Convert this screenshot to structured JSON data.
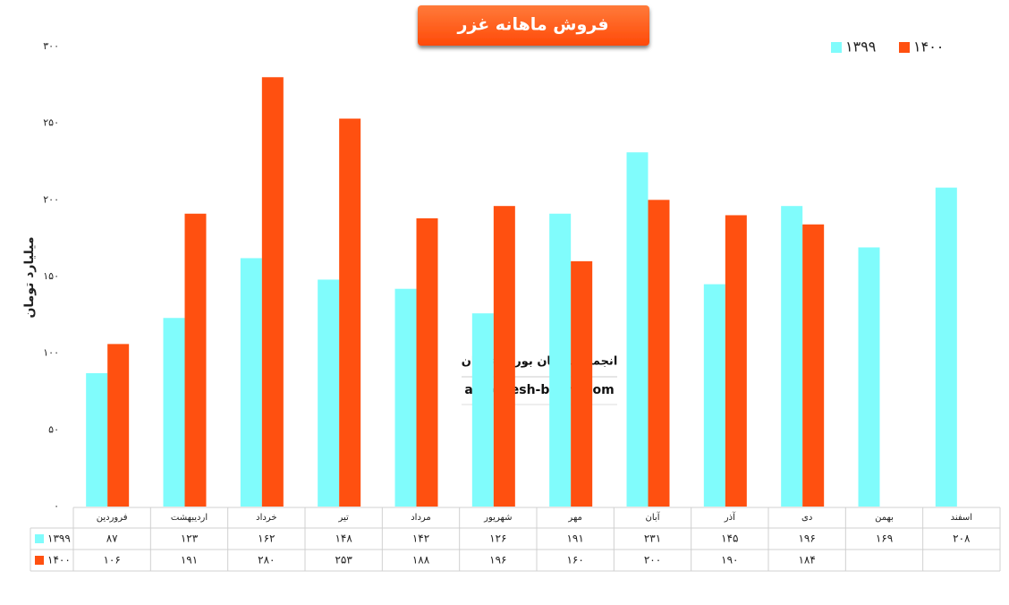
{
  "chart_data": {
    "type": "bar",
    "title": "فروش ماهانه غزر",
    "y_label": "میلیارد تومان",
    "watermark": [
      "انجمن خبرگان بورس تهران",
      "amoozesh-boors.com"
    ],
    "categories": [
      "فروردین",
      "اردیبهشت",
      "خرداد",
      "تیر",
      "مرداد",
      "شهریور",
      "مهر",
      "آبان",
      "آذر",
      "دی",
      "بهمن",
      "اسفند"
    ],
    "series": [
      {
        "name": "۱۳۹۹",
        "color": "#80fcfc",
        "values": [
          87,
          123,
          162,
          148,
          142,
          126,
          191,
          231,
          145,
          196,
          169,
          208
        ],
        "value_labels": [
          "۸۷",
          "۱۲۳",
          "۱۶۲",
          "۱۴۸",
          "۱۴۲",
          "۱۲۶",
          "۱۹۱",
          "۲۳۱",
          "۱۴۵",
          "۱۹۶",
          "۱۶۹",
          "۲۰۸"
        ]
      },
      {
        "name": "۱۴۰۰",
        "color": "#ff5010",
        "values": [
          106,
          191,
          280,
          253,
          188,
          196,
          160,
          200,
          190,
          184,
          null,
          null
        ],
        "value_labels": [
          "۱۰۶",
          "۱۹۱",
          "۲۸۰",
          "۲۵۳",
          "۱۸۸",
          "۱۹۶",
          "۱۶۰",
          "۲۰۰",
          "۱۹۰",
          "۱۸۴",
          null,
          null
        ]
      }
    ],
    "ylim": [
      0,
      300
    ],
    "yticks": [
      {
        "value": 0,
        "label": "۰"
      },
      {
        "value": 50,
        "label": "۵۰"
      },
      {
        "value": 100,
        "label": "۱۰۰"
      },
      {
        "value": 150,
        "label": "۱۵۰"
      },
      {
        "value": 200,
        "label": "۲۰۰"
      },
      {
        "value": 250,
        "label": "۲۵۰"
      },
      {
        "value": 300,
        "label": "۳۰۰"
      }
    ],
    "grid": false,
    "legend": "top-right"
  }
}
